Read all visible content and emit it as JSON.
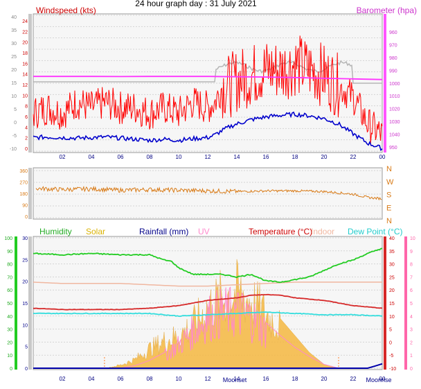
{
  "page_title": "24 hour graph day : 31 July 2021",
  "top_panel": {
    "left_label": "Windspeed (kts)",
    "right_label": "Barometer (hpa)"
  },
  "bottom_panel": {
    "labels": {
      "humidity": "Humidity",
      "solar": "Solar",
      "rainfall": "Rainfall (mm)",
      "uv": "UV",
      "temperature": "Temperature (°C)",
      "indoor": "Indoor",
      "dew_point": "Dew Point (°C)"
    },
    "moon_labels": [
      "Moonset",
      "Moonrise"
    ]
  },
  "x_ticks": [
    "02",
    "04",
    "06",
    "08",
    "10",
    "12",
    "14",
    "16",
    "18",
    "20",
    "22",
    "00"
  ],
  "colors": {
    "wind_gust": "#ff0000",
    "wind_avg": "#0000cc",
    "barometer": "#ff33ff",
    "barometer_grey": "#b5b5b5",
    "direction": "#d87a16",
    "humidity": "#22cc22",
    "solar": "#f5b841",
    "rainfall": "#0000aa",
    "uv": "#ff88cc",
    "temperature": "#d62828",
    "indoor": "#f0b7a0",
    "dew_point": "#33dddd",
    "left_label_wind": "#cc0000",
    "right_label_baro": "#cc33cc",
    "axis_blue": "#000080"
  },
  "chart_data": [
    {
      "type": "line",
      "title": "Windspeed (kts) / Barometer (hpa)",
      "x_unit": "hour",
      "xlim": [
        0,
        24
      ],
      "axes": {
        "left_grey_ticks": [
          "-10",
          "-5",
          "0",
          "5",
          "10",
          "15",
          "20",
          "25",
          "30",
          "35",
          "40"
        ],
        "left_red_ticks": [
          "0",
          "2",
          "4",
          "6",
          "8",
          "10",
          "12",
          "14",
          "16",
          "18",
          "20",
          "22",
          "24"
        ],
        "right_ticks": [
          "960",
          "970",
          "980",
          "990",
          "1000",
          "1010",
          "1020",
          "1030",
          "1040",
          "950"
        ],
        "ylim_kts": [
          0,
          25
        ],
        "ylim_hpa": [
          940,
          1050
        ]
      },
      "series": [
        {
          "name": "Wind gust (kts)",
          "x": [
            0,
            1,
            2,
            3,
            4,
            5,
            6,
            7,
            8,
            9,
            10,
            11,
            12,
            12.5,
            13,
            13.5,
            14,
            15,
            16,
            17,
            18,
            19,
            20,
            21,
            22,
            23,
            24
          ],
          "y": [
            7,
            8,
            7,
            9,
            8,
            9,
            8,
            8,
            7,
            8,
            7,
            9,
            8,
            9,
            12,
            12,
            13,
            14,
            15,
            15,
            16,
            15,
            14,
            12,
            10,
            5,
            3
          ]
        },
        {
          "name": "Wind avg (kts)",
          "x": [
            0,
            1,
            2,
            3,
            4,
            5,
            6,
            7,
            8,
            9,
            10,
            11,
            12,
            12.5,
            13,
            13.5,
            14,
            15,
            16,
            17,
            18,
            19,
            20,
            21,
            22,
            23,
            24
          ],
          "y": [
            2.5,
            2.6,
            2.5,
            2.4,
            2.5,
            2.6,
            2.4,
            2.2,
            2,
            2.2,
            2,
            2.3,
            2.5,
            3,
            3.8,
            4.5,
            5,
            5.8,
            6.3,
            6.6,
            6.8,
            6.5,
            6,
            5,
            3.2,
            1.5,
            0.5
          ]
        },
        {
          "name": "Barometer (hpa)",
          "x": [
            0,
            2,
            4,
            6,
            8,
            10,
            12,
            14,
            16,
            18,
            20,
            22,
            24
          ],
          "y": [
            1000.5,
            1000.5,
            1000.5,
            1000.4,
            1000.5,
            1000.5,
            1000.5,
            1000.2,
            1000,
            999.6,
            999,
            998.5,
            998
          ]
        }
      ]
    },
    {
      "type": "scatter",
      "title": "Wind direction",
      "axes": {
        "left_ticks": [
          "360",
          "270",
          "180",
          "90",
          "0"
        ],
        "right_letters": [
          "N",
          "W",
          "S",
          "E",
          "N"
        ],
        "ylim": [
          0,
          360
        ]
      },
      "series": [
        {
          "name": "Direction (deg)",
          "x": [
            0,
            2,
            4,
            6,
            8,
            10,
            12,
            14,
            16,
            18,
            20,
            22,
            23,
            24
          ],
          "y": [
            225,
            215,
            220,
            210,
            215,
            210,
            205,
            200,
            205,
            205,
            200,
            180,
            155,
            145
          ]
        }
      ]
    },
    {
      "type": "line",
      "title": "Humidity / Solar / Rainfall / UV / Temperature / Indoor / Dew Point",
      "axes": {
        "humidity_ticks": [
          "0",
          "10",
          "20",
          "30",
          "40",
          "50",
          "60",
          "70",
          "80",
          "90",
          "100"
        ],
        "rain_ticks": [
          "0",
          "5",
          "10",
          "15",
          "20",
          "25",
          "30"
        ],
        "temp_ticks": [
          "-10",
          "-5",
          "0",
          "5",
          "10",
          "15",
          "20",
          "25",
          "30",
          "35",
          "40"
        ],
        "uv_ticks": [
          "0",
          "1",
          "2",
          "3",
          "4",
          "5",
          "6",
          "7",
          "8",
          "9",
          "10"
        ],
        "ylim_humidity": [
          0,
          100
        ],
        "ylim_temp": [
          -10,
          40
        ]
      },
      "series": [
        {
          "name": "Humidity",
          "x": [
            0,
            2,
            4,
            6,
            8,
            9,
            9.5,
            10,
            11,
            12,
            13,
            14,
            15,
            16,
            17,
            18,
            19,
            20,
            21,
            22,
            23,
            24
          ],
          "y": [
            88,
            87,
            88,
            87,
            87,
            83,
            82,
            77,
            72,
            72,
            72,
            70,
            72,
            67,
            66,
            68,
            70,
            75,
            80,
            83,
            88,
            92
          ]
        },
        {
          "name": "Temperature (°C)",
          "x": [
            0,
            2,
            4,
            6,
            8,
            10,
            12,
            14,
            15,
            16,
            17,
            18,
            20,
            22,
            24
          ],
          "y": [
            13,
            12.5,
            12.5,
            12.5,
            13,
            14,
            16,
            17,
            18,
            18.2,
            18,
            17,
            16,
            14,
            13
          ]
        },
        {
          "name": "Dew Point (°C)",
          "x": [
            0,
            2,
            4,
            6,
            8,
            10,
            12,
            14,
            16,
            18,
            20,
            22,
            24
          ],
          "y": [
            11,
            11,
            11,
            11,
            11,
            10,
            10.5,
            11,
            11.5,
            11,
            10.5,
            10.5,
            10
          ]
        },
        {
          "name": "Indoor",
          "x": [
            0,
            2,
            4,
            6,
            8,
            10,
            12,
            14,
            16,
            18,
            20,
            22,
            24
          ],
          "y": [
            23,
            22.5,
            22.5,
            22.5,
            22,
            21.5,
            21.5,
            22,
            22.5,
            23,
            23,
            23,
            23
          ]
        },
        {
          "name": "Solar",
          "x": [
            5,
            6,
            7,
            8,
            9,
            10,
            11,
            12,
            13,
            14,
            15,
            16,
            17,
            18,
            19,
            20,
            21
          ],
          "y": [
            0,
            3,
            8,
            18,
            25,
            30,
            40,
            55,
            65,
            70,
            62,
            50,
            38,
            25,
            12,
            3,
            0
          ]
        },
        {
          "name": "UV",
          "x": [
            6,
            7,
            8,
            9,
            10,
            11,
            12,
            13,
            14,
            15,
            16,
            17,
            18,
            19,
            20,
            21
          ],
          "y": [
            0,
            0.2,
            0.6,
            1.2,
            2.2,
            3.5,
            4.8,
            5.3,
            5.3,
            4.8,
            3.5,
            2.5,
            1.6,
            0.9,
            0.3,
            0
          ]
        },
        {
          "name": "Rainfall (mm)",
          "x": [
            0,
            23,
            23.5,
            24
          ],
          "y": [
            0,
            0,
            0.5,
            1
          ]
        }
      ]
    }
  ]
}
